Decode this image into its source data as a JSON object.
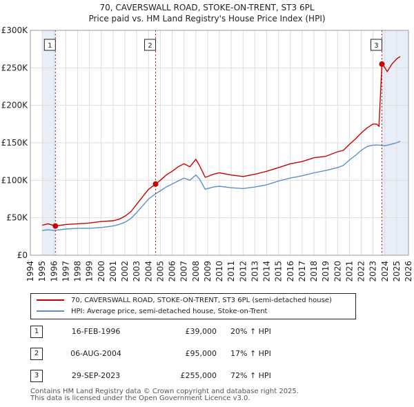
{
  "chart_data": {
    "type": "line",
    "title": "70, CAVERSWALL ROAD, STOKE-ON-TRENT, ST3 6PL",
    "subtitle": "Price paid vs. HM Land Registry's House Price Index (HPI)",
    "xlabel": "",
    "ylabel": "",
    "xlim": [
      1995.0,
      2026.0
    ],
    "ylim": [
      0,
      300000
    ],
    "x_ticks": [
      1994,
      1995,
      1996,
      1997,
      1998,
      1999,
      2000,
      2001,
      2002,
      2003,
      2004,
      2005,
      2006,
      2007,
      2008,
      2009,
      2010,
      2011,
      2012,
      2013,
      2014,
      2015,
      2016,
      2017,
      2018,
      2019,
      2020,
      2021,
      2022,
      2023,
      2024,
      2025,
      2026
    ],
    "y_ticks": [
      0,
      50000,
      100000,
      150000,
      200000,
      250000,
      300000
    ],
    "y_tick_labels": [
      "£0",
      "£50K",
      "£100K",
      "£150K",
      "£200K",
      "£250K",
      "£300K"
    ],
    "grid": true,
    "shaded_regions": [
      {
        "from": 1995.0,
        "to": 1996.12
      },
      {
        "from": 2023.75,
        "to": 2026.0
      }
    ],
    "series": [
      {
        "name": "70, CAVERSWALL ROAD, STOKE-ON-TRENT, ST3 6PL (semi-detached house)",
        "color": "#cc0000",
        "x": [
          1995.0,
          1995.5,
          1996.12,
          1997.0,
          1998.0,
          1999.0,
          2000.0,
          2001.0,
          2001.5,
          2002.0,
          2002.5,
          2003.0,
          2003.5,
          2004.0,
          2004.6,
          2005.0,
          2005.5,
          2006.0,
          2006.5,
          2007.0,
          2007.5,
          2008.0,
          2008.3,
          2008.8,
          2009.0,
          2009.5,
          2010.0,
          2011.0,
          2012.0,
          2013.0,
          2014.0,
          2015.0,
          2016.0,
          2017.0,
          2018.0,
          2019.0,
          2020.0,
          2020.5,
          2021.0,
          2021.5,
          2022.0,
          2022.5,
          2023.0,
          2023.3,
          2023.5,
          2023.75,
          2024.0,
          2024.2,
          2024.6,
          2025.0,
          2025.3
        ],
        "y": [
          40000,
          42000,
          39000,
          41000,
          42000,
          43000,
          45000,
          46000,
          48000,
          52000,
          58000,
          68000,
          78000,
          88000,
          95000,
          100000,
          107000,
          112000,
          118000,
          122000,
          118000,
          128000,
          120000,
          104000,
          105000,
          108000,
          110000,
          107000,
          105000,
          108000,
          112000,
          117000,
          122000,
          125000,
          130000,
          132000,
          138000,
          140000,
          148000,
          155000,
          163000,
          170000,
          175000,
          175000,
          172000,
          255000,
          250000,
          245000,
          255000,
          262000,
          265000
        ]
      },
      {
        "name": "HPI: Average price, semi-detached house, Stoke-on-Trent",
        "color": "#5b8fc9",
        "x": [
          1995.0,
          1995.5,
          1996.0,
          1997.0,
          1998.0,
          1999.0,
          2000.0,
          2001.0,
          2001.5,
          2002.0,
          2002.5,
          2003.0,
          2003.5,
          2004.0,
          2004.6,
          2005.0,
          2005.5,
          2006.0,
          2006.5,
          2007.0,
          2007.5,
          2008.0,
          2008.3,
          2008.8,
          2009.0,
          2009.5,
          2010.0,
          2011.0,
          2012.0,
          2013.0,
          2014.0,
          2015.0,
          2016.0,
          2017.0,
          2018.0,
          2019.0,
          2020.0,
          2020.5,
          2021.0,
          2021.5,
          2022.0,
          2022.5,
          2023.0,
          2023.5,
          2024.0,
          2024.5,
          2025.0,
          2025.3
        ],
        "y": [
          33000,
          34000,
          33000,
          35000,
          36000,
          36000,
          37000,
          39000,
          41000,
          44000,
          49000,
          57000,
          66000,
          75000,
          82000,
          86000,
          91000,
          95000,
          99000,
          103000,
          100000,
          107000,
          102000,
          88000,
          89000,
          91000,
          92000,
          90000,
          89000,
          91000,
          94000,
          99000,
          103000,
          106000,
          110000,
          113000,
          117000,
          120000,
          127000,
          133000,
          140000,
          145000,
          147000,
          147000,
          146000,
          148000,
          150000,
          152000
        ]
      }
    ],
    "sale_markers": [
      {
        "label": "1",
        "x": 1996.12,
        "y": 39000
      },
      {
        "label": "2",
        "x": 2004.6,
        "y": 95000
      },
      {
        "label": "3",
        "x": 2023.75,
        "y": 255000
      }
    ]
  },
  "legend": {
    "red_label": "70, CAVERSWALL ROAD, STOKE-ON-TRENT, ST3 6PL (semi-detached house)",
    "blue_label": "HPI: Average price, semi-detached house, Stoke-on-Trent"
  },
  "sales": [
    {
      "num": "1",
      "date": "16-FEB-1996",
      "price": "£39,000",
      "hpi": "20% ↑ HPI"
    },
    {
      "num": "2",
      "date": "06-AUG-2004",
      "price": "£95,000",
      "hpi": "17% ↑ HPI"
    },
    {
      "num": "3",
      "date": "29-SEP-2023",
      "price": "£255,000",
      "hpi": "72% ↑ HPI"
    }
  ],
  "footer": {
    "line1": "Contains HM Land Registry data © Crown copyright and database right 2025.",
    "line2": "This data is licensed under the Open Government Licence v3.0."
  }
}
